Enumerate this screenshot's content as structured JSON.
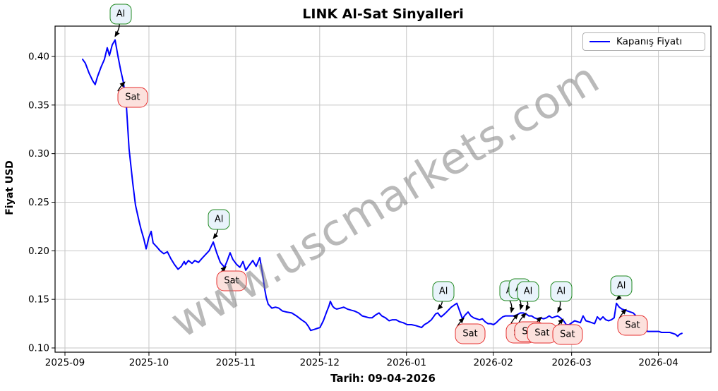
{
  "chart": {
    "title": "LINK Al-Sat Sinyalleri",
    "y_axis_label": "Fiyat USD",
    "x_axis_label": "Tarih: 09-04-2026",
    "legend_label": "Kapanış Fiyatı",
    "watermark": "www.uscmarkets.com",
    "al_label": "Al",
    "sat_label": "Sat",
    "colors": {
      "line": "#0000ff",
      "grid": "#c6c6c6",
      "al_border": "#218a21",
      "al_fill": "#e9f3fb",
      "sat_border": "#e62e2e",
      "sat_fill": "#fce1dd",
      "watermark": "#808080"
    }
  },
  "chart_data": {
    "type": "line",
    "title": "LINK Al-Sat Sinyalleri",
    "xlabel": "Tarih: 09-04-2026",
    "ylabel": "Fiyat USD",
    "legend": [
      "Kapanış Fiyatı"
    ],
    "x_unit": "days since 2025-09-01",
    "ylim": [
      0.096,
      0.431
    ],
    "grid": true,
    "x_ticks": [
      {
        "d": 0,
        "label": "2025-09"
      },
      {
        "d": 30,
        "label": "2025-10"
      },
      {
        "d": 61,
        "label": "2025-11"
      },
      {
        "d": 91,
        "label": "2025-12"
      },
      {
        "d": 122,
        "label": "2026-01"
      },
      {
        "d": 153,
        "label": "2026-02"
      },
      {
        "d": 181,
        "label": "2026-03"
      },
      {
        "d": 212,
        "label": "2026-04"
      }
    ],
    "y_ticks": [
      0.1,
      0.15,
      0.2,
      0.25,
      0.3,
      0.35,
      0.4
    ],
    "series": [
      {
        "name": "Kapanış Fiyatı",
        "points": [
          [
            6.3,
            0.397
          ],
          [
            7.3,
            0.393
          ],
          [
            8.6,
            0.383
          ],
          [
            9.9,
            0.375
          ],
          [
            10.8,
            0.371
          ],
          [
            11.6,
            0.379
          ],
          [
            12.9,
            0.389
          ],
          [
            14.1,
            0.397
          ],
          [
            15.1,
            0.409
          ],
          [
            15.9,
            0.401
          ],
          [
            16.9,
            0.412
          ],
          [
            17.9,
            0.417
          ],
          [
            18.9,
            0.401
          ],
          [
            19.9,
            0.386
          ],
          [
            20.9,
            0.373
          ],
          [
            21.9,
            0.352
          ],
          [
            22.9,
            0.305
          ],
          [
            24.2,
            0.27
          ],
          [
            25.2,
            0.247
          ],
          [
            26.5,
            0.23
          ],
          [
            27.2,
            0.222
          ],
          [
            28.2,
            0.212
          ],
          [
            29.0,
            0.202
          ],
          [
            30.0,
            0.214
          ],
          [
            30.8,
            0.22
          ],
          [
            31.5,
            0.208
          ],
          [
            32.8,
            0.204
          ],
          [
            34.0,
            0.2
          ],
          [
            35.3,
            0.197
          ],
          [
            36.6,
            0.199
          ],
          [
            37.8,
            0.192
          ],
          [
            39.1,
            0.186
          ],
          [
            40.4,
            0.181
          ],
          [
            41.6,
            0.184
          ],
          [
            42.6,
            0.189
          ],
          [
            43.1,
            0.186
          ],
          [
            44.1,
            0.19
          ],
          [
            45.4,
            0.187
          ],
          [
            46.4,
            0.19
          ],
          [
            47.7,
            0.188
          ],
          [
            48.9,
            0.192
          ],
          [
            50.2,
            0.196
          ],
          [
            51.5,
            0.2
          ],
          [
            53.0,
            0.209
          ],
          [
            54.2,
            0.198
          ],
          [
            55.5,
            0.188
          ],
          [
            57.0,
            0.183
          ],
          [
            58.0,
            0.19
          ],
          [
            59.0,
            0.198
          ],
          [
            60.0,
            0.191
          ],
          [
            61.3,
            0.186
          ],
          [
            62.5,
            0.183
          ],
          [
            63.6,
            0.189
          ],
          [
            64.6,
            0.18
          ],
          [
            65.8,
            0.185
          ],
          [
            67.1,
            0.19
          ],
          [
            68.3,
            0.184
          ],
          [
            69.6,
            0.193
          ],
          [
            70.6,
            0.176
          ],
          [
            71.4,
            0.16
          ],
          [
            71.9,
            0.152
          ],
          [
            72.6,
            0.145
          ],
          [
            73.9,
            0.141
          ],
          [
            75.2,
            0.142
          ],
          [
            76.4,
            0.141
          ],
          [
            77.7,
            0.138
          ],
          [
            79.2,
            0.137
          ],
          [
            81.0,
            0.136
          ],
          [
            82.7,
            0.133
          ],
          [
            84.5,
            0.129
          ],
          [
            86.0,
            0.126
          ],
          [
            87.0,
            0.122
          ],
          [
            87.8,
            0.118
          ],
          [
            89.0,
            0.119
          ],
          [
            90.0,
            0.12
          ],
          [
            91.1,
            0.121
          ],
          [
            92.3,
            0.128
          ],
          [
            93.6,
            0.138
          ],
          [
            94.3,
            0.143
          ],
          [
            94.8,
            0.148
          ],
          [
            95.6,
            0.143
          ],
          [
            96.3,
            0.141
          ],
          [
            97.1,
            0.14
          ],
          [
            98.4,
            0.141
          ],
          [
            99.6,
            0.142
          ],
          [
            100.9,
            0.14
          ],
          [
            102.1,
            0.139
          ],
          [
            103.4,
            0.138
          ],
          [
            104.9,
            0.136
          ],
          [
            106.2,
            0.133
          ],
          [
            107.4,
            0.132
          ],
          [
            108.7,
            0.131
          ],
          [
            109.7,
            0.131
          ],
          [
            111.0,
            0.134
          ],
          [
            112.2,
            0.136
          ],
          [
            113.2,
            0.133
          ],
          [
            114.5,
            0.131
          ],
          [
            115.8,
            0.128
          ],
          [
            117.0,
            0.129
          ],
          [
            118.3,
            0.129
          ],
          [
            119.5,
            0.127
          ],
          [
            120.8,
            0.126
          ],
          [
            122.3,
            0.124
          ],
          [
            123.8,
            0.124
          ],
          [
            125.3,
            0.123
          ],
          [
            126.4,
            0.122
          ],
          [
            127.4,
            0.121
          ],
          [
            128.4,
            0.124
          ],
          [
            129.6,
            0.126
          ],
          [
            130.9,
            0.129
          ],
          [
            132.4,
            0.135
          ],
          [
            133.2,
            0.136
          ],
          [
            134.0,
            0.133
          ],
          [
            134.4,
            0.132
          ],
          [
            135.2,
            0.134
          ],
          [
            136.0,
            0.136
          ],
          [
            137.0,
            0.139
          ],
          [
            138.0,
            0.142
          ],
          [
            139.0,
            0.144
          ],
          [
            140.0,
            0.146
          ],
          [
            141.0,
            0.138
          ],
          [
            142.0,
            0.13
          ],
          [
            143.0,
            0.134
          ],
          [
            144.0,
            0.137
          ],
          [
            145.0,
            0.133
          ],
          [
            146.0,
            0.131
          ],
          [
            147.0,
            0.13
          ],
          [
            148.1,
            0.129
          ],
          [
            149.1,
            0.13
          ],
          [
            150.1,
            0.127
          ],
          [
            151.1,
            0.125
          ],
          [
            152.1,
            0.125
          ],
          [
            153.1,
            0.124
          ],
          [
            154.1,
            0.126
          ],
          [
            155.1,
            0.129
          ],
          [
            156.4,
            0.132
          ],
          [
            157.4,
            0.133
          ],
          [
            158.4,
            0.133
          ],
          [
            159.4,
            0.133
          ],
          [
            160.4,
            0.133
          ],
          [
            161.4,
            0.134
          ],
          [
            162.7,
            0.136
          ],
          [
            163.7,
            0.136
          ],
          [
            164.7,
            0.135
          ],
          [
            165.7,
            0.133
          ],
          [
            166.7,
            0.133
          ],
          [
            167.7,
            0.131
          ],
          [
            168.7,
            0.13
          ],
          [
            169.7,
            0.131
          ],
          [
            171.0,
            0.13
          ],
          [
            172.0,
            0.131
          ],
          [
            173.0,
            0.133
          ],
          [
            174.0,
            0.131
          ],
          [
            175.0,
            0.132
          ],
          [
            176.0,
            0.133
          ],
          [
            177.0,
            0.131
          ],
          [
            178.1,
            0.128
          ],
          [
            179.1,
            0.124
          ],
          [
            180.1,
            0.124
          ],
          [
            181.1,
            0.126
          ],
          [
            182.1,
            0.128
          ],
          [
            183.1,
            0.127
          ],
          [
            184.1,
            0.126
          ],
          [
            185.1,
            0.133
          ],
          [
            186.1,
            0.128
          ],
          [
            187.2,
            0.127
          ],
          [
            188.2,
            0.126
          ],
          [
            189.2,
            0.125
          ],
          [
            190.2,
            0.132
          ],
          [
            191.2,
            0.129
          ],
          [
            192.2,
            0.132
          ],
          [
            193.2,
            0.129
          ],
          [
            194.2,
            0.128
          ],
          [
            195.2,
            0.129
          ],
          [
            196.2,
            0.131
          ],
          [
            197.0,
            0.146
          ],
          [
            198.0,
            0.142
          ],
          [
            199.0,
            0.14
          ],
          [
            200.0,
            0.139
          ],
          [
            201.0,
            0.138
          ],
          [
            202.0,
            0.137
          ],
          [
            203.0,
            0.136
          ],
          [
            204.0,
            0.133
          ],
          [
            205.1,
            0.131
          ],
          [
            206.1,
            0.13
          ],
          [
            207.1,
            0.121
          ],
          [
            208.1,
            0.117
          ],
          [
            209.1,
            0.117
          ],
          [
            210.1,
            0.117
          ],
          [
            211.1,
            0.117
          ],
          [
            212.1,
            0.117
          ],
          [
            213.1,
            0.116
          ],
          [
            214.1,
            0.116
          ],
          [
            215.1,
            0.116
          ],
          [
            216.1,
            0.116
          ],
          [
            217.1,
            0.115
          ],
          [
            218.1,
            0.114
          ],
          [
            218.9,
            0.112
          ],
          [
            219.6,
            0.114
          ],
          [
            220.4,
            0.115
          ]
        ]
      }
    ],
    "signals": {
      "al": [
        {
          "d": 17.9,
          "price": 0.417,
          "bdx": 8,
          "bdy": -37
        },
        {
          "d": 53.0,
          "price": 0.209,
          "bdx": 8,
          "bdy": -32
        },
        {
          "d": 133.2,
          "price": 0.136,
          "bdx": 8,
          "bdy": -30
        },
        {
          "d": 159.4,
          "price": 0.133,
          "bdx": -1,
          "bdy": -36
        },
        {
          "d": 162.7,
          "price": 0.136,
          "bdx": -1,
          "bdy": -34
        },
        {
          "d": 164.7,
          "price": 0.135,
          "bdx": 3,
          "bdy": -32
        },
        {
          "d": 176.0,
          "price": 0.133,
          "bdx": 5,
          "bdy": -35
        },
        {
          "d": 197.0,
          "price": 0.146,
          "bdx": 7,
          "bdy": -25
        }
      ],
      "sat": [
        {
          "d": 20.9,
          "price": 0.373,
          "bdx": 13,
          "bdy": 21
        },
        {
          "d": 57.0,
          "price": 0.183,
          "bdx": 10,
          "bdy": 19
        },
        {
          "d": 142.0,
          "price": 0.13,
          "bdx": 11,
          "bdy": 21
        },
        {
          "d": 161.4,
          "price": 0.134,
          "bdx": 6,
          "bdy": 26
        },
        {
          "d": 164.2,
          "price": 0.135,
          "bdx": 7,
          "bdy": 25
        },
        {
          "d": 169.7,
          "price": 0.131,
          "bdx": 3,
          "bdy": 22
        },
        {
          "d": 177.5,
          "price": 0.129,
          "bdx": 8,
          "bdy": 21
        },
        {
          "d": 200.0,
          "price": 0.139,
          "bdx": 11,
          "bdy": 22
        }
      ]
    }
  }
}
